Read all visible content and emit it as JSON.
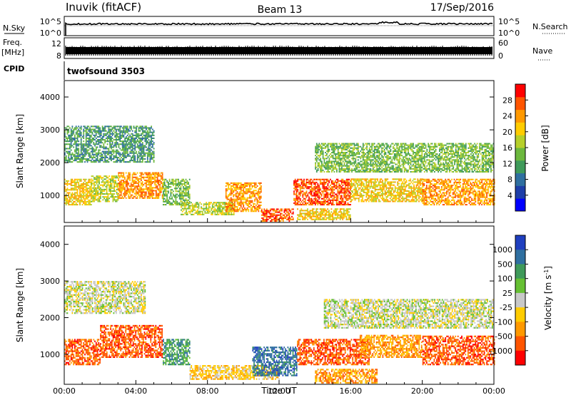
{
  "header": {
    "station": "Inuvik (fitACF)",
    "beam": "Beam 13",
    "date": "17/Sep/2016"
  },
  "top_panels": {
    "nsky_label": "N.Sky",
    "nsky_ticks": [
      "10^5",
      "10^0"
    ],
    "nsearch_label": "N.Search",
    "nsearch_ticks": [
      "10^5",
      "10^0"
    ],
    "freq_label_1": "Freq.",
    "freq_label_2": "[MHz]",
    "freq_ticks": [
      "12",
      "8"
    ],
    "nave_label": "Nave",
    "nave_ticks": [
      "60",
      "0"
    ],
    "cpid_label": "CPID",
    "cpid_value": "twofsound 3503"
  },
  "chart_data": [
    {
      "type": "heatmap",
      "name": "power-panel",
      "ylabel": "Slant Range [km]",
      "y_ticks": [
        "4000",
        "3000",
        "2000",
        "1000"
      ],
      "y_tick_values": [
        4000,
        3000,
        2000,
        1000
      ],
      "ylim": [
        180,
        4500
      ],
      "x_ticks": [
        "00:00",
        "04:00",
        "08:00",
        "12:00",
        "16:00",
        "20:00",
        "00:00"
      ],
      "xlim_hours": [
        0,
        24
      ],
      "colorbar": {
        "label": "Power [dB]",
        "ticks": [
          "28",
          "24",
          "20",
          "16",
          "12",
          "8",
          "4"
        ],
        "tick_values": [
          28,
          24,
          20,
          16,
          12,
          8,
          4
        ],
        "range": [
          0,
          32
        ],
        "colors": [
          "#0000ff",
          "#1e3ea8",
          "#2f6fa0",
          "#3f9a5a",
          "#6cb83e",
          "#b6cf2a",
          "#ffcc00",
          "#ff9900",
          "#ff5500",
          "#ff0000"
        ]
      },
      "bands": [
        {
          "t0": 0.0,
          "t1": 1.5,
          "r0": 700,
          "r1": 1500,
          "v": 22
        },
        {
          "t0": 1.5,
          "t1": 3.0,
          "r0": 800,
          "r1": 1600,
          "v": 18
        },
        {
          "t0": 3.0,
          "t1": 5.5,
          "r0": 900,
          "r1": 1700,
          "v": 25
        },
        {
          "t0": 5.5,
          "t1": 7.0,
          "r0": 700,
          "r1": 1500,
          "v": 14
        },
        {
          "t0": 0.0,
          "t1": 5.0,
          "r0": 2000,
          "r1": 3100,
          "v": 12
        },
        {
          "t0": 6.5,
          "t1": 9.5,
          "r0": 400,
          "r1": 800,
          "v": 18
        },
        {
          "t0": 9.0,
          "t1": 11.0,
          "r0": 500,
          "r1": 1400,
          "v": 24
        },
        {
          "t0": 11.0,
          "t1": 12.8,
          "r0": 200,
          "r1": 600,
          "v": 27
        },
        {
          "t0": 12.8,
          "t1": 16.0,
          "r0": 700,
          "r1": 1500,
          "v": 27
        },
        {
          "t0": 16.0,
          "t1": 20.0,
          "r0": 800,
          "r1": 1500,
          "v": 22
        },
        {
          "t0": 20.0,
          "t1": 24.0,
          "r0": 700,
          "r1": 1500,
          "v": 24
        },
        {
          "t0": 14.0,
          "t1": 24.0,
          "r0": 1700,
          "r1": 2600,
          "v": 14
        },
        {
          "t0": 13.0,
          "t1": 16.0,
          "r0": 250,
          "r1": 600,
          "v": 20
        }
      ]
    },
    {
      "type": "heatmap",
      "name": "velocity-panel",
      "ylabel": "Slant Range [km]",
      "y_ticks": [
        "4000",
        "3000",
        "2000",
        "1000"
      ],
      "y_tick_values": [
        4000,
        3000,
        2000,
        1000
      ],
      "ylim": [
        180,
        4500
      ],
      "x_ticks": [
        "00:00",
        "04:00",
        "08:00",
        "12:00",
        "16:00",
        "20:00",
        "00:00"
      ],
      "xlim_hours": [
        0,
        24
      ],
      "xlabel": "Time UT",
      "colorbar": {
        "label": "Velocity [m s^-1]",
        "ticks": [
          "1000",
          "500",
          "100",
          "25",
          "-25",
          "-100",
          "-500",
          "-1000"
        ],
        "colors": [
          "#1f3fbf",
          "#2f6fa0",
          "#3f9a5a",
          "#66c033",
          "#c8c8c8",
          "#ffcc00",
          "#ff9900",
          "#ff5500",
          "#ff0000"
        ]
      },
      "bands": [
        {
          "t0": 0.0,
          "t1": 2.0,
          "r0": 700,
          "r1": 1400,
          "c": 7
        },
        {
          "t0": 2.0,
          "t1": 5.5,
          "r0": 900,
          "r1": 1800,
          "c": 7
        },
        {
          "t0": 5.5,
          "t1": 7.0,
          "r0": 700,
          "r1": 1400,
          "c": 2
        },
        {
          "t0": 0.0,
          "t1": 4.5,
          "r0": 2100,
          "r1": 3000,
          "c": 4
        },
        {
          "t0": 7.0,
          "t1": 12.0,
          "r0": 300,
          "r1": 700,
          "c": 5
        },
        {
          "t0": 10.5,
          "t1": 13.0,
          "r0": 400,
          "r1": 1200,
          "c": 1
        },
        {
          "t0": 13.0,
          "t1": 17.0,
          "r0": 700,
          "r1": 1400,
          "c": 7
        },
        {
          "t0": 16.5,
          "t1": 20.0,
          "r0": 900,
          "r1": 1500,
          "c": 6
        },
        {
          "t0": 20.0,
          "t1": 24.0,
          "r0": 700,
          "r1": 1500,
          "c": 7
        },
        {
          "t0": 14.5,
          "t1": 24.0,
          "r0": 1700,
          "r1": 2500,
          "c": 4
        },
        {
          "t0": 14.0,
          "t1": 17.5,
          "r0": 200,
          "r1": 600,
          "c": 6
        }
      ]
    }
  ]
}
